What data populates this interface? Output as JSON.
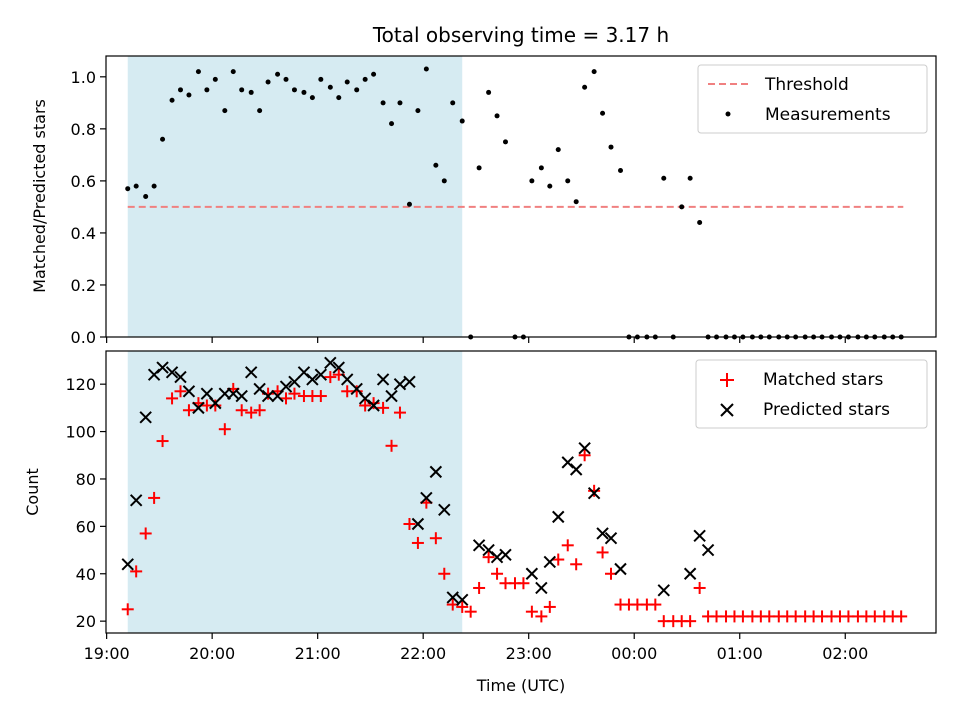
{
  "chart_data": [
    {
      "type": "scatter",
      "title": "Total observing time = 3.17 h",
      "xlabel": "",
      "ylabel": "Matched/Predicted stars",
      "ylim": [
        0,
        1.08
      ],
      "yticks": [
        "0.0",
        "0.2",
        "0.4",
        "0.6",
        "0.8",
        "1.0"
      ],
      "shaded_span_hours": [
        19.2,
        22.37
      ],
      "legend_position": "top-right",
      "colors": {
        "threshold": "#f08080",
        "measurements": "#000000",
        "span": "#add8e6"
      },
      "threshold": {
        "name": "Threshold",
        "value": 0.5,
        "x_range_hours": [
          19.2,
          26.55
        ]
      },
      "series": [
        {
          "name": "Measurements",
          "x_hours": [
            19.2,
            19.28,
            19.37,
            19.45,
            19.53,
            19.62,
            19.7,
            19.78,
            19.87,
            19.95,
            20.03,
            20.12,
            20.2,
            20.28,
            20.37,
            20.45,
            20.53,
            20.62,
            20.7,
            20.78,
            20.87,
            20.95,
            21.03,
            21.12,
            21.2,
            21.28,
            21.37,
            21.45,
            21.53,
            21.62,
            21.7,
            21.78,
            21.87,
            21.95,
            22.03,
            22.12,
            22.2,
            22.28,
            22.37,
            22.45,
            22.53,
            22.62,
            22.7,
            22.78,
            22.87,
            22.95,
            23.03,
            23.12,
            23.2,
            23.28,
            23.37,
            23.45,
            23.53,
            23.62,
            23.7,
            23.78,
            23.87,
            23.95,
            24.03,
            24.12,
            24.2,
            24.28,
            24.37,
            24.45,
            24.53,
            24.62,
            24.7,
            24.78,
            24.87,
            24.95,
            25.03,
            25.12,
            25.2,
            25.28,
            25.37,
            25.45,
            25.53,
            25.62,
            25.7,
            25.78,
            25.87,
            25.95,
            26.03,
            26.12,
            26.2,
            26.28,
            26.37,
            26.45,
            26.53
          ],
          "values": [
            0.57,
            0.58,
            0.54,
            0.58,
            0.76,
            0.91,
            0.95,
            0.93,
            1.02,
            0.95,
            0.99,
            0.87,
            1.02,
            0.95,
            0.94,
            0.87,
            0.98,
            1.01,
            0.99,
            0.95,
            0.94,
            0.92,
            0.99,
            0.96,
            0.92,
            0.98,
            0.95,
            0.99,
            1.01,
            0.9,
            0.82,
            0.9,
            0.51,
            0.87,
            1.03,
            0.66,
            0.6,
            0.9,
            0.83,
            0.0,
            0.65,
            0.94,
            0.85,
            0.75,
            0.0,
            0.0,
            0.6,
            0.65,
            0.58,
            0.72,
            0.6,
            0.52,
            0.96,
            1.02,
            0.86,
            0.73,
            0.64,
            0.0,
            0.0,
            0.0,
            0.0,
            0.61,
            0.0,
            0.5,
            0.61,
            0.44,
            0.0,
            0.0,
            0.0,
            0.0,
            0.0,
            0.0,
            0.0,
            0.0,
            0.0,
            0.0,
            0.0,
            0.0,
            0.0,
            0.0,
            0.0,
            0.0,
            0.0,
            0.0,
            0.0,
            0.0,
            0.0,
            0.0,
            0.0
          ]
        }
      ]
    },
    {
      "type": "scatter",
      "xlabel": "Time (UTC)",
      "ylabel": "Count",
      "ylim": [
        15,
        134
      ],
      "yticks": [
        "20",
        "40",
        "60",
        "80",
        "100",
        "120"
      ],
      "xticks": [
        {
          "hour": 19,
          "label": "19:00"
        },
        {
          "hour": 20,
          "label": "20:00"
        },
        {
          "hour": 21,
          "label": "21:00"
        },
        {
          "hour": 22,
          "label": "22:00"
        },
        {
          "hour": 23,
          "label": "23:00"
        },
        {
          "hour": 24,
          "label": "00:00"
        },
        {
          "hour": 25,
          "label": "01:00"
        },
        {
          "hour": 26,
          "label": "02:00"
        }
      ],
      "shaded_span_hours": [
        19.2,
        22.37
      ],
      "legend_position": "top-right",
      "colors": {
        "matched": "#ff0000",
        "predicted": "#000000",
        "span": "#add8e6"
      },
      "series": [
        {
          "name": "Matched stars",
          "x_hours": [
            19.2,
            19.28,
            19.37,
            19.45,
            19.53,
            19.62,
            19.7,
            19.78,
            19.87,
            19.95,
            20.03,
            20.12,
            20.2,
            20.28,
            20.37,
            20.45,
            20.53,
            20.62,
            20.7,
            20.78,
            20.87,
            20.95,
            21.03,
            21.12,
            21.2,
            21.28,
            21.37,
            21.45,
            21.53,
            21.62,
            21.7,
            21.78,
            21.87,
            21.95,
            22.03,
            22.12,
            22.2,
            22.28,
            22.37,
            22.45,
            22.53,
            22.62,
            22.7,
            22.78,
            22.87,
            22.95,
            23.03,
            23.12,
            23.2,
            23.28,
            23.37,
            23.45,
            23.53,
            23.62,
            23.7,
            23.78,
            23.87,
            23.95,
            24.03,
            24.12,
            24.2,
            24.28,
            24.37,
            24.45,
            24.53,
            24.62,
            24.7,
            24.78,
            24.87,
            24.95,
            25.03,
            25.12,
            25.2,
            25.28,
            25.37,
            25.45,
            25.53,
            25.62,
            25.7,
            25.78,
            25.87,
            25.95,
            26.03,
            26.12,
            26.2,
            26.28,
            26.37,
            26.45,
            26.53
          ],
          "values": [
            25,
            41,
            57,
            72,
            96,
            114,
            117,
            109,
            112,
            111,
            111,
            101,
            118,
            109,
            108,
            109,
            116,
            117,
            114,
            116,
            115,
            115,
            115,
            123,
            124,
            117,
            117,
            111,
            112,
            110,
            94,
            108,
            61,
            53,
            70,
            55,
            40,
            27,
            26,
            24,
            34,
            47,
            40,
            36,
            36,
            36,
            24,
            22,
            26,
            46,
            52,
            44,
            90,
            75,
            49,
            40,
            27,
            27,
            27,
            27,
            27,
            20,
            20,
            20,
            20,
            34,
            22,
            22,
            22,
            22,
            22,
            22,
            22,
            22,
            22,
            22,
            22,
            22,
            22,
            22,
            22,
            22,
            22,
            22,
            22,
            22,
            22,
            22,
            22
          ],
          "count": 89
        },
        {
          "name": "Predicted stars",
          "x_hours": [
            19.2,
            19.28,
            19.37,
            19.45,
            19.53,
            19.62,
            19.7,
            19.78,
            19.87,
            19.95,
            20.03,
            20.12,
            20.2,
            20.28,
            20.37,
            20.45,
            20.53,
            20.62,
            20.7,
            20.78,
            20.87,
            20.95,
            21.03,
            21.12,
            21.2,
            21.28,
            21.37,
            21.45,
            21.53,
            21.62,
            21.7,
            21.78,
            21.87,
            21.95,
            22.03,
            22.12,
            22.2,
            22.28,
            22.37,
            22.53,
            22.62,
            22.7,
            22.78,
            23.03,
            23.12,
            23.2,
            23.28,
            23.37,
            23.45,
            23.53,
            23.62,
            23.7,
            23.78,
            23.87,
            24.28,
            24.53,
            24.62,
            24.7
          ],
          "values": [
            44,
            71,
            106,
            124,
            127,
            125,
            123,
            117,
            110,
            116,
            112,
            116,
            116,
            115,
            125,
            118,
            115,
            115,
            119,
            121,
            125,
            122,
            124,
            129,
            127,
            122,
            118,
            114,
            111,
            122,
            115,
            120,
            121,
            61,
            72,
            83,
            67,
            30,
            29,
            52,
            50,
            47,
            48,
            40,
            34,
            45,
            64,
            87,
            84,
            93,
            74,
            57,
            55,
            42,
            33,
            40,
            56,
            50
          ]
        }
      ]
    }
  ]
}
